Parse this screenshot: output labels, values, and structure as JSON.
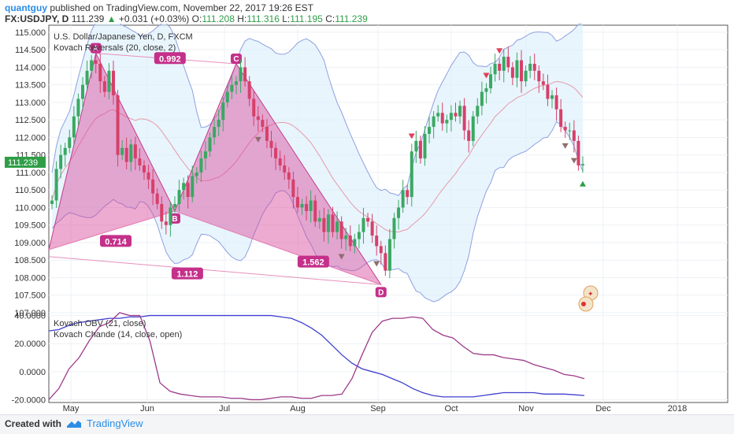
{
  "header": {
    "author": "quantguy",
    "published": "published on TradingView.com, November 22, 2017 19:26 EST",
    "symbol": "FX:USDJPY, D",
    "last": "111.239",
    "change": "+0.031 (+0.03%)",
    "o_label": "O:",
    "o_value": "111.208",
    "h_label": "H:",
    "h_value": "111.316",
    "l_label": "L:",
    "l_value": "111.195",
    "c_label": "C:",
    "c_value": "111.239"
  },
  "footer": {
    "created": "Created with",
    "brand": "TradingView"
  },
  "chart_data": [
    {
      "type": "candlestick",
      "title": "U.S. Dollar/Japanese Yen, D, FXCM",
      "indicator": "Kovach Reversals (20, close, 2)",
      "price_label": "111.239",
      "ylim": [
        107.0,
        115.2
      ],
      "yticks": [
        "115.000",
        "114.500",
        "114.000",
        "113.500",
        "113.000",
        "112.500",
        "112.000",
        "111.500",
        "111.000",
        "110.500",
        "110.000",
        "109.500",
        "109.000",
        "108.500",
        "108.000",
        "107.500",
        "107.000"
      ],
      "xticks": [
        "May",
        "Jun",
        "Jul",
        "Aug",
        "Sep",
        "Oct",
        "Nov",
        "Dec",
        "2018"
      ],
      "close": [
        110.2,
        111.1,
        111.5,
        111.7,
        112.0,
        112.6,
        113.1,
        113.5,
        113.9,
        114.2,
        114.1,
        113.6,
        113.3,
        113.9,
        113.2,
        111.5,
        111.7,
        111.3,
        111.8,
        111.4,
        111.2,
        111.0,
        110.8,
        110.4,
        110.1,
        109.6,
        109.5,
        110.0,
        110.1,
        110.5,
        110.7,
        110.3,
        110.9,
        111.0,
        111.4,
        111.6,
        112.0,
        112.3,
        112.5,
        113.0,
        113.3,
        113.5,
        113.6,
        114.0,
        113.6,
        113.1,
        112.6,
        112.5,
        112.3,
        111.9,
        111.7,
        111.4,
        111.2,
        111.0,
        110.8,
        110.3,
        110.0,
        110.1,
        109.9,
        110.2,
        109.6,
        109.7,
        109.3,
        109.8,
        109.3,
        109.6,
        109.1,
        109.2,
        108.9,
        109.1,
        109.3,
        109.7,
        109.6,
        109.2,
        108.9,
        108.7,
        108.2,
        109.1,
        109.7,
        110.0,
        110.5,
        110.3,
        111.6,
        111.9,
        111.4,
        112.1,
        112.3,
        112.6,
        112.7,
        112.4,
        112.5,
        112.7,
        112.6,
        112.9,
        112.2,
        111.9,
        112.6,
        112.9,
        113.3,
        113.4,
        113.8,
        114.1,
        113.9,
        114.3,
        114.0,
        113.7,
        114.2,
        113.6,
        113.9,
        114.1,
        113.9,
        113.6,
        113.5,
        113.1,
        113.2,
        112.8,
        112.3,
        112.2,
        112.2,
        111.9,
        111.2,
        111.239
      ]
    },
    {
      "type": "harmonic_pattern",
      "points": [
        {
          "label": "A",
          "price": 114.4
        },
        {
          "label": "B",
          "price": 109.9
        },
        {
          "label": "C",
          "price": 114.1
        },
        {
          "label": "D",
          "price": 107.8
        }
      ],
      "ratios": [
        "0.992",
        "0.714",
        "1.562",
        "1.112"
      ]
    },
    {
      "type": "line",
      "ylim": [
        -22,
        42
      ],
      "yticks": [
        "40.0000",
        "20.0000",
        "0.0000",
        "-20.0000"
      ],
      "series": [
        {
          "name": "Kovach OBV (21, close)",
          "color": "#3f3fd0",
          "values": [
            29,
            30,
            33,
            35,
            36,
            37,
            38,
            38,
            39,
            39,
            40,
            40,
            40,
            40,
            40,
            40,
            40,
            40,
            40,
            40,
            40,
            40,
            40,
            39,
            38,
            35,
            31,
            26,
            19,
            12,
            6,
            2,
            0,
            -2,
            -5,
            -8,
            -12,
            -15,
            -17,
            -18,
            -18,
            -18,
            -18,
            -17,
            -16,
            -15,
            -15,
            -15,
            -15,
            -16,
            -16,
            -16,
            -16.5,
            -17
          ]
        },
        {
          "name": "Kovach Chande (14, close, open)",
          "color": "#9c3a8a",
          "values": [
            -20,
            -12,
            2,
            10,
            22,
            32,
            35,
            42,
            40,
            40,
            22,
            -8,
            -14,
            -16,
            -17,
            -18,
            -18,
            -18,
            -19,
            -19,
            -20,
            -20,
            -19,
            -18,
            -18,
            -19,
            -19,
            -17,
            -17,
            -16,
            -5,
            12,
            28,
            36,
            38,
            38,
            39,
            38,
            30,
            26,
            24,
            18,
            13,
            12,
            12,
            10,
            9,
            8,
            5,
            3,
            1,
            -2,
            -3,
            -5
          ]
        }
      ]
    }
  ]
}
